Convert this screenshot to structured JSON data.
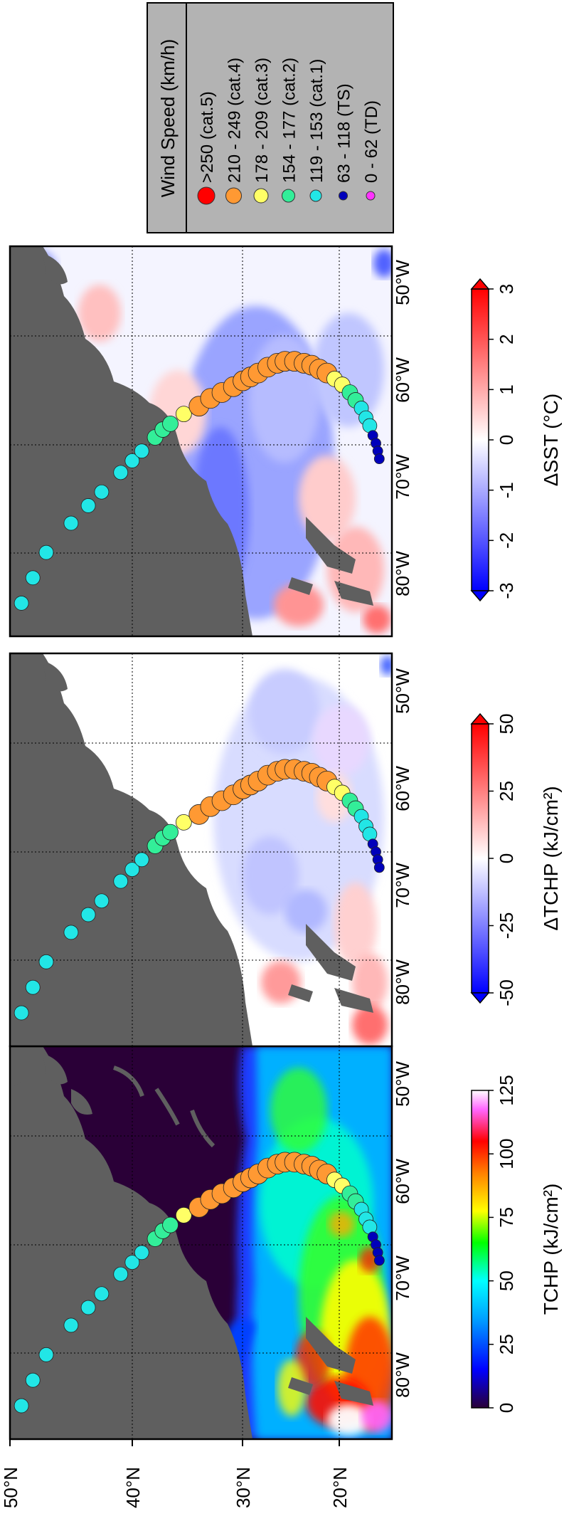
{
  "chart_data": [
    {
      "type": "heatmap",
      "panel": "tchp",
      "colorbar_label": "TCHP (kJ/cm²)",
      "colorbar_ticks": [
        "0",
        "25",
        "50",
        "75",
        "100",
        "125"
      ],
      "colorbar_range": [
        0,
        125
      ],
      "colormap": [
        "#2a0037",
        "#0000ff",
        "#00a0ff",
        "#00ffff",
        "#00ff00",
        "#ffff00",
        "#ff8000",
        "#ff0000",
        "#ffffff"
      ],
      "longitude_ticks": [
        "80°W",
        "70°W",
        "60°W",
        "50°W"
      ],
      "latitude_ticks": [
        "50°N",
        "40°N",
        "30°N",
        "20°N"
      ],
      "grid": true
    },
    {
      "type": "heatmap",
      "panel": "delta_tchp",
      "colorbar_label": "ΔTCHP (kJ/cm²)",
      "colorbar_ticks": [
        "-50",
        "-25",
        "0",
        "25",
        "50"
      ],
      "colorbar_range": [
        -50,
        50
      ],
      "colormap": [
        "#0000ff",
        "#ffffff",
        "#ff0000"
      ],
      "longitude_ticks": [
        "80°W",
        "70°W",
        "60°W",
        "50°W"
      ],
      "grid": true
    },
    {
      "type": "heatmap",
      "panel": "delta_sst",
      "colorbar_label": "ΔSST (°C)",
      "colorbar_ticks": [
        "-3",
        "-2",
        "-1",
        "0",
        "1",
        "2",
        "3"
      ],
      "colorbar_range": [
        -3,
        3
      ],
      "colormap": [
        "#0000ff",
        "#ffffff",
        "#ff0000"
      ],
      "longitude_ticks": [
        "80°W",
        "70°W",
        "60°W",
        "50°W"
      ],
      "grid": true
    }
  ],
  "legend": {
    "title": "Wind Speed (km/h)",
    "entries": [
      {
        "label": ">250 (cat.5)",
        "color": "#ff0000"
      },
      {
        "label": "210 - 249 (cat.4)",
        "color": "#ff9933"
      },
      {
        "label": "178 - 209 (cat.3)",
        "color": "#ffff66"
      },
      {
        "label": "154 - 177 (cat.2)",
        "color": "#33ee99"
      },
      {
        "label": "119 - 153 (cat.1)",
        "color": "#22e6e6"
      },
      {
        "label": "63 - 118 (TS)",
        "color": "#0000bb"
      },
      {
        "label": "0 - 62 (TD)",
        "color": "#ff33ff"
      }
    ]
  }
}
